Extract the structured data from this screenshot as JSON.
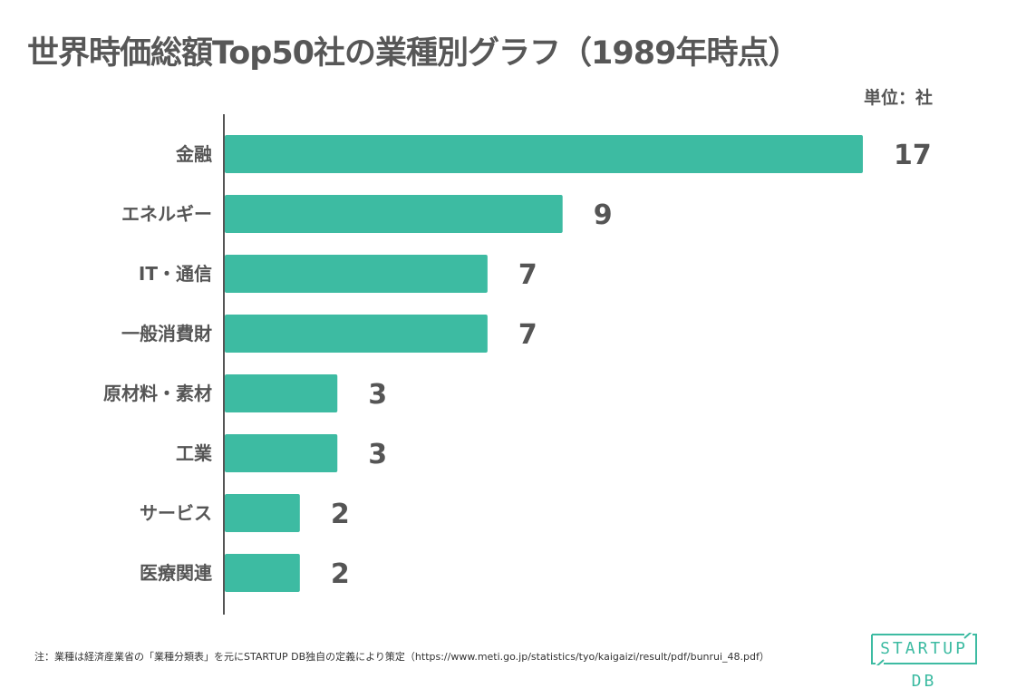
{
  "title": "世界時価総額Top50社の業種別グラフ（1989年時点）",
  "unit_label": "単位：社",
  "note": "注：業種は経済産業省の「業種分類表」を元にSTARTUP DB独自の定義により策定（https://www.meti.go.jp/statistics/tyo/kaigaizi/result/pdf/bunrui_48.pdf）",
  "logo": {
    "text": "STARTUP DB",
    "color": "#3dbba2"
  },
  "chart_data": {
    "type": "bar",
    "orientation": "horizontal",
    "categories": [
      "金融",
      "エネルギー",
      "IT・通信",
      "一般消費財",
      "原材料・素材",
      "工業",
      "サービス",
      "医療関連"
    ],
    "values": [
      17,
      9,
      7,
      7,
      3,
      3,
      2,
      2
    ],
    "bar_color": "#3dbba2",
    "xlim": [
      0,
      17
    ],
    "grid": false,
    "legend": "none"
  }
}
